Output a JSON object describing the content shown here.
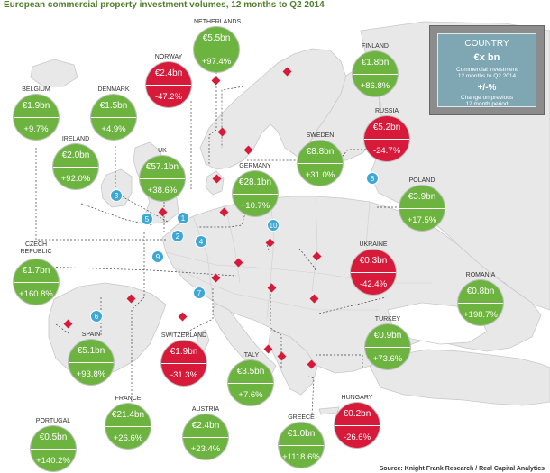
{
  "title": "European commercial property investment volumes, 12 months to Q2 2014",
  "source": "Source: Knight Frank Research / Real Capital Analytics",
  "legend": {
    "header": "COUNTRY",
    "value_caption": "€x bn",
    "value_desc_1": "Commercial investment",
    "value_desc_2": "12 months to Q2 2014",
    "change_caption": "+/-%",
    "change_desc_1": "Change on previous",
    "change_desc_2": "12 month period"
  },
  "colors": {
    "positive": "#6db33f",
    "negative": "#d7193a",
    "marker": "#d7193a",
    "land": "#e8e8e8",
    "sea": "#ffffff"
  },
  "countries": [
    {
      "id": "netherlands",
      "name": "NETHERLANDS",
      "value": "€5.5bn",
      "change": "+97.4%",
      "status": "green"
    },
    {
      "id": "norway",
      "name": "NORWAY",
      "value": "€2.4bn",
      "change": "-47.2%",
      "status": "red"
    },
    {
      "id": "finland",
      "name": "FINLAND",
      "value": "€1.8bn",
      "change": "+86.8%",
      "status": "green"
    },
    {
      "id": "belgium",
      "name": "BELGIUM",
      "value": "€1.9bn",
      "change": "+9.7%",
      "status": "green"
    },
    {
      "id": "denmark",
      "name": "DENMARK",
      "value": "€1.5bn",
      "change": "+4.9%",
      "status": "green"
    },
    {
      "id": "russia",
      "name": "RUSSIA",
      "value": "€5.2bn",
      "change": "-24.7%",
      "status": "red"
    },
    {
      "id": "ireland",
      "name": "IRELAND",
      "value": "€2.0bn",
      "change": "+92.0%",
      "status": "green"
    },
    {
      "id": "uk",
      "name": "UK",
      "value": "€57.1bn",
      "change": "+38.6%",
      "status": "green"
    },
    {
      "id": "sweden",
      "name": "SWEDEN",
      "value": "€8.8bn",
      "change": "+31.0%",
      "status": "green"
    },
    {
      "id": "germany",
      "name": "GERMANY",
      "value": "€28.1bn",
      "change": "+10.7%",
      "status": "green"
    },
    {
      "id": "poland",
      "name": "POLAND",
      "value": "€3.9bn",
      "change": "+17.5%",
      "status": "green"
    },
    {
      "id": "czech",
      "name": "CZECH REPUBLIC",
      "value": "€1.7bn",
      "change": "+160.8%",
      "status": "green"
    },
    {
      "id": "ukraine",
      "name": "UKRAINE",
      "value": "€0.3bn",
      "change": "-42.4%",
      "status": "red"
    },
    {
      "id": "romania",
      "name": "ROMANIA",
      "value": "€0.8bn",
      "change": "+198.7%",
      "status": "green"
    },
    {
      "id": "spain",
      "name": "SPAIN",
      "value": "€5.1bn",
      "change": "+93.8%",
      "status": "green"
    },
    {
      "id": "switzerland",
      "name": "SWITZERLAND",
      "value": "€1.9bn",
      "change": "-31.3%",
      "status": "red"
    },
    {
      "id": "turkey",
      "name": "TURKEY",
      "value": "€0.9bn",
      "change": "+73.6%",
      "status": "green"
    },
    {
      "id": "italy",
      "name": "ITALY",
      "value": "€3.5bn",
      "change": "+7.6%",
      "status": "green"
    },
    {
      "id": "hungary",
      "name": "HUNGARY",
      "value": "€0.2bn",
      "change": "-26.6%",
      "status": "red"
    },
    {
      "id": "portugal",
      "name": "PORTUGAL",
      "value": "€0.5bn",
      "change": "+140.2%",
      "status": "green"
    },
    {
      "id": "france",
      "name": "FRANCE",
      "value": "€21.4bn",
      "change": "+26.6%",
      "status": "green"
    },
    {
      "id": "austria",
      "name": "AUSTRIA",
      "value": "€2.4bn",
      "change": "+23.4%",
      "status": "green"
    },
    {
      "id": "greece",
      "name": "GREECE",
      "value": "€1.0bn",
      "change": "+1118.6%",
      "status": "green"
    }
  ],
  "numbered_points": [
    "1",
    "2",
    "3",
    "4",
    "5",
    "6",
    "7",
    "8",
    "9",
    "10"
  ]
}
